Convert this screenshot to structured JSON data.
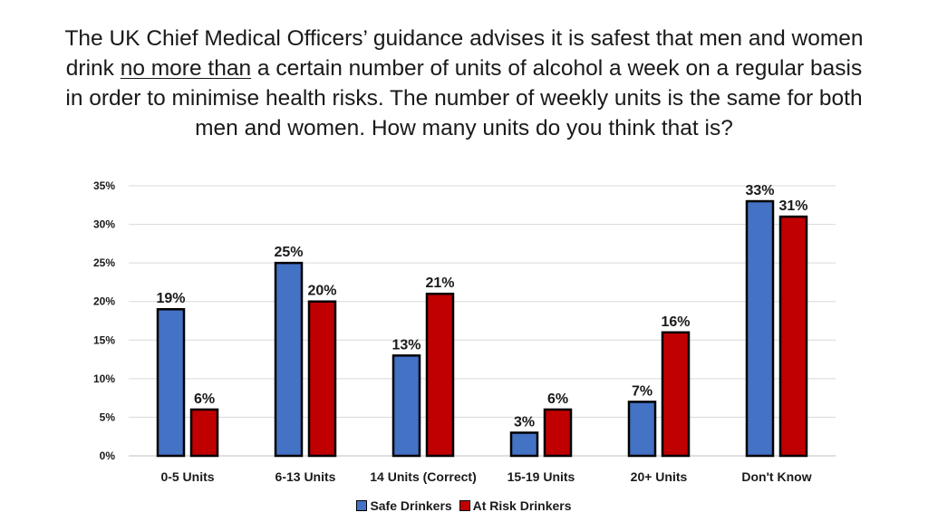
{
  "title": {
    "before": "The UK Chief Medical Officers’ guidance advises it is safest that men and women drink ",
    "underlined": "no more than",
    "after": " a certain number of units of alcohol a week on a regular basis in order to minimise health risks. The number of weekly units is the same for both men and women. How many units do you think that is?"
  },
  "chart_data": {
    "type": "bar",
    "categories": [
      "0-5 Units",
      "6-13 Units",
      "14 Units (Correct)",
      "15-19 Units",
      "20+ Units",
      "Don't Know"
    ],
    "series": [
      {
        "name": "Safe Drinkers",
        "values": [
          19,
          25,
          13,
          3,
          7,
          33
        ],
        "color": "#4472C4"
      },
      {
        "name": "At Risk Drinkers",
        "values": [
          6,
          20,
          21,
          6,
          16,
          31
        ],
        "color": "#C00000"
      }
    ],
    "ylim": [
      0,
      35
    ],
    "yticks": [
      0,
      5,
      10,
      15,
      20,
      25,
      30,
      35
    ],
    "ytick_format": "%",
    "data_labels": true,
    "grid": true,
    "legend_position": "bottom"
  }
}
